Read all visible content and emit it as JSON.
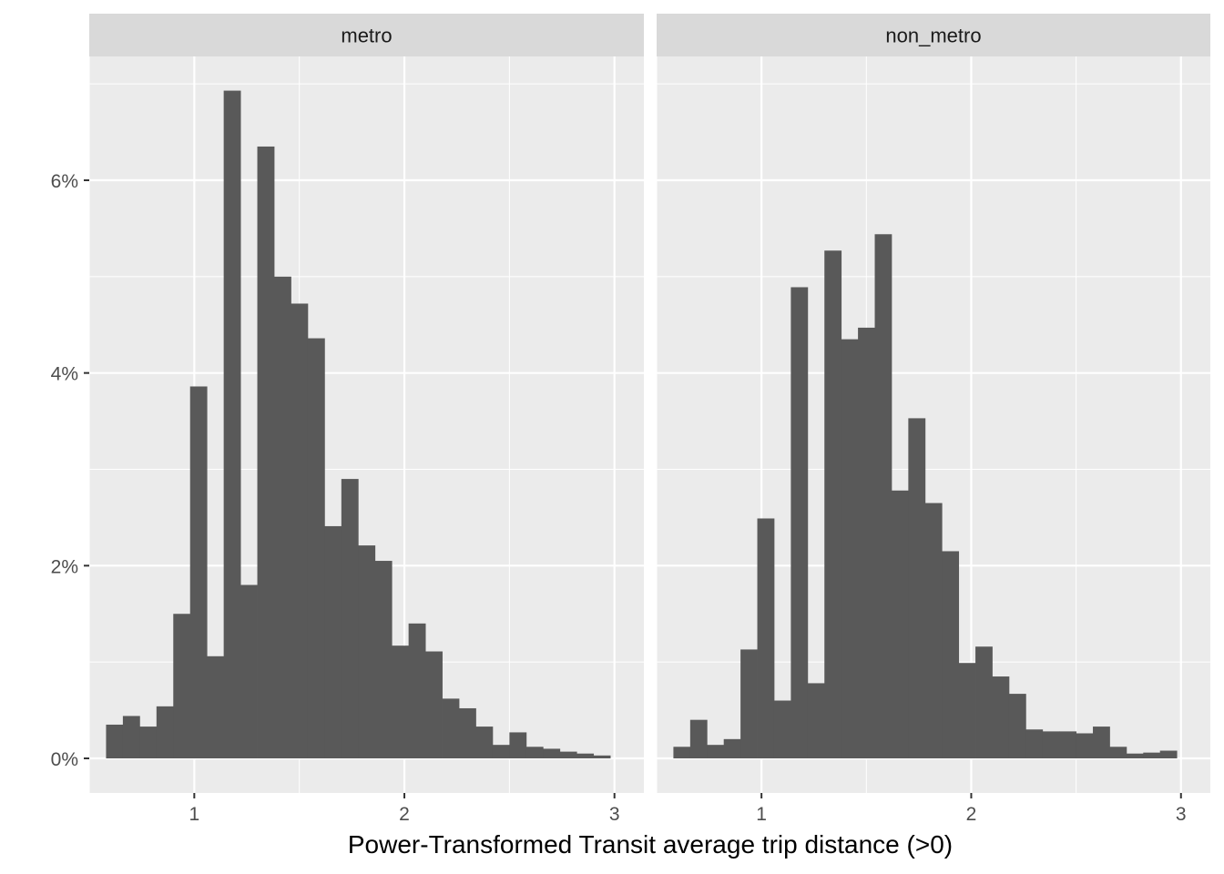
{
  "chart_data": {
    "type": "bar",
    "subtype": "histogram",
    "xlabel": "Power-Transformed Transit average trip distance (>0)",
    "ylabel": "",
    "y_format": "percent",
    "ylim": [
      0,
      7.3
    ],
    "y_ticks": [
      0,
      2,
      4,
      6
    ],
    "y_tick_labels": [
      "0%",
      "2%",
      "4%",
      "6%"
    ],
    "x_ticks": [
      1,
      2,
      3
    ],
    "x_tick_labels": [
      "1",
      "2",
      "3"
    ],
    "grid": true,
    "bar_color": "#595959",
    "panel_background": "#ebebeb",
    "strip_background": "#d9d9d9",
    "panels": [
      {
        "name": "metro",
        "xlim": [
          0.5,
          3.14
        ],
        "bin_edges_start": 0.58,
        "bin_width": 0.08,
        "values": [
          0.35,
          0.44,
          0.33,
          0.54,
          1.5,
          3.86,
          1.06,
          6.93,
          1.8,
          6.35,
          5.0,
          4.72,
          4.36,
          2.41,
          2.9,
          2.21,
          2.05,
          1.17,
          1.4,
          1.11,
          0.62,
          0.52,
          0.33,
          0.14,
          0.27,
          0.12,
          0.1,
          0.07,
          0.05,
          0.03
        ]
      },
      {
        "name": "non_metro",
        "xlim": [
          0.5,
          3.14
        ],
        "bin_edges_start": 0.58,
        "bin_width": 0.08,
        "values": [
          0.12,
          0.4,
          0.14,
          0.2,
          1.13,
          2.49,
          0.6,
          4.89,
          0.78,
          5.27,
          4.35,
          4.47,
          5.44,
          2.78,
          3.53,
          2.65,
          2.15,
          0.99,
          1.16,
          0.85,
          0.67,
          0.3,
          0.28,
          0.28,
          0.26,
          0.33,
          0.12,
          0.05,
          0.06,
          0.08
        ]
      }
    ]
  }
}
